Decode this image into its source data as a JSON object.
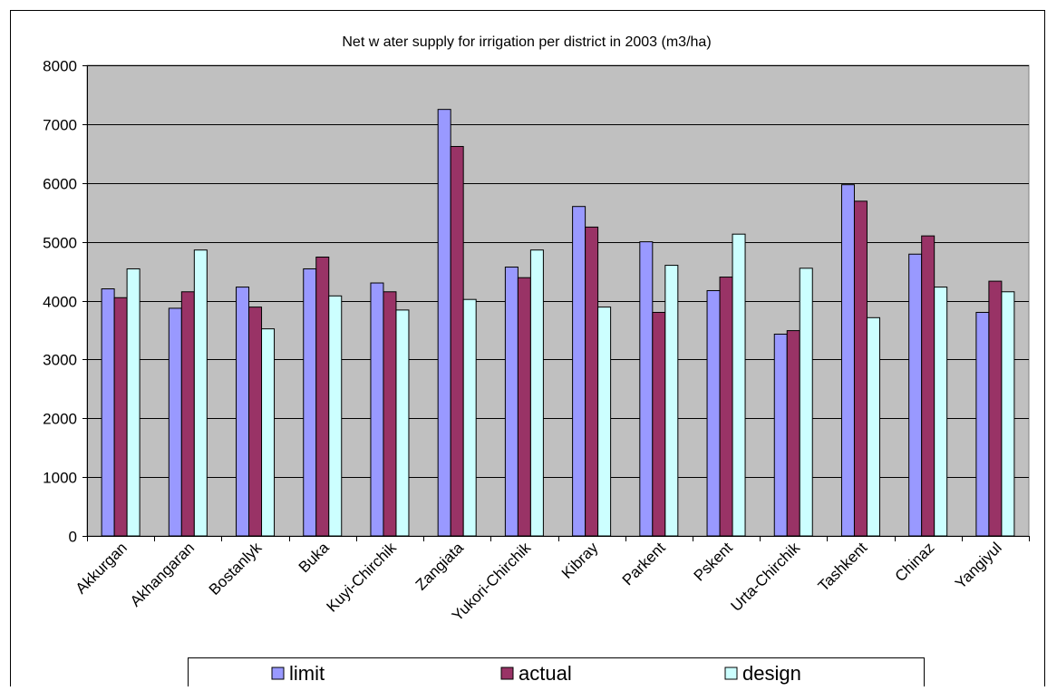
{
  "chart_data": {
    "type": "bar",
    "title": "Net w ater supply for irrigation per district in 2003 (m3/ha)",
    "xlabel": "",
    "ylabel": "",
    "ylim": [
      0,
      8000
    ],
    "yticks": [
      0,
      1000,
      2000,
      3000,
      4000,
      5000,
      6000,
      7000,
      8000
    ],
    "grid": true,
    "legend_position": "bottom",
    "categories": [
      "Akkurgan",
      "Akhangaran",
      "Bostanlyk",
      "Buka",
      "Kuyi-Chirchik",
      "Zangiata",
      "Yukori-Chirchik",
      "Kibray",
      "Parkent",
      "Pskent",
      "Urta-Chirchik",
      "Tashkent",
      "Chinaz",
      "Yangiyul"
    ],
    "series": [
      {
        "name": "limit",
        "color": "#9999ff",
        "values": [
          4200,
          3870,
          4230,
          4540,
          4300,
          7250,
          4570,
          5600,
          5000,
          4170,
          3430,
          5970,
          4790,
          3800
        ]
      },
      {
        "name": "actual",
        "color": "#993366",
        "values": [
          4050,
          4150,
          3890,
          4740,
          4150,
          6620,
          4390,
          5250,
          3800,
          4400,
          3490,
          5690,
          5100,
          4330
        ]
      },
      {
        "name": "design",
        "color": "#ccffff",
        "values": [
          4540,
          4860,
          3520,
          4080,
          3840,
          4020,
          4860,
          3890,
          4600,
          5130,
          4550,
          3710,
          4230,
          4150
        ]
      }
    ],
    "plot_background": "#c0c0c0"
  }
}
